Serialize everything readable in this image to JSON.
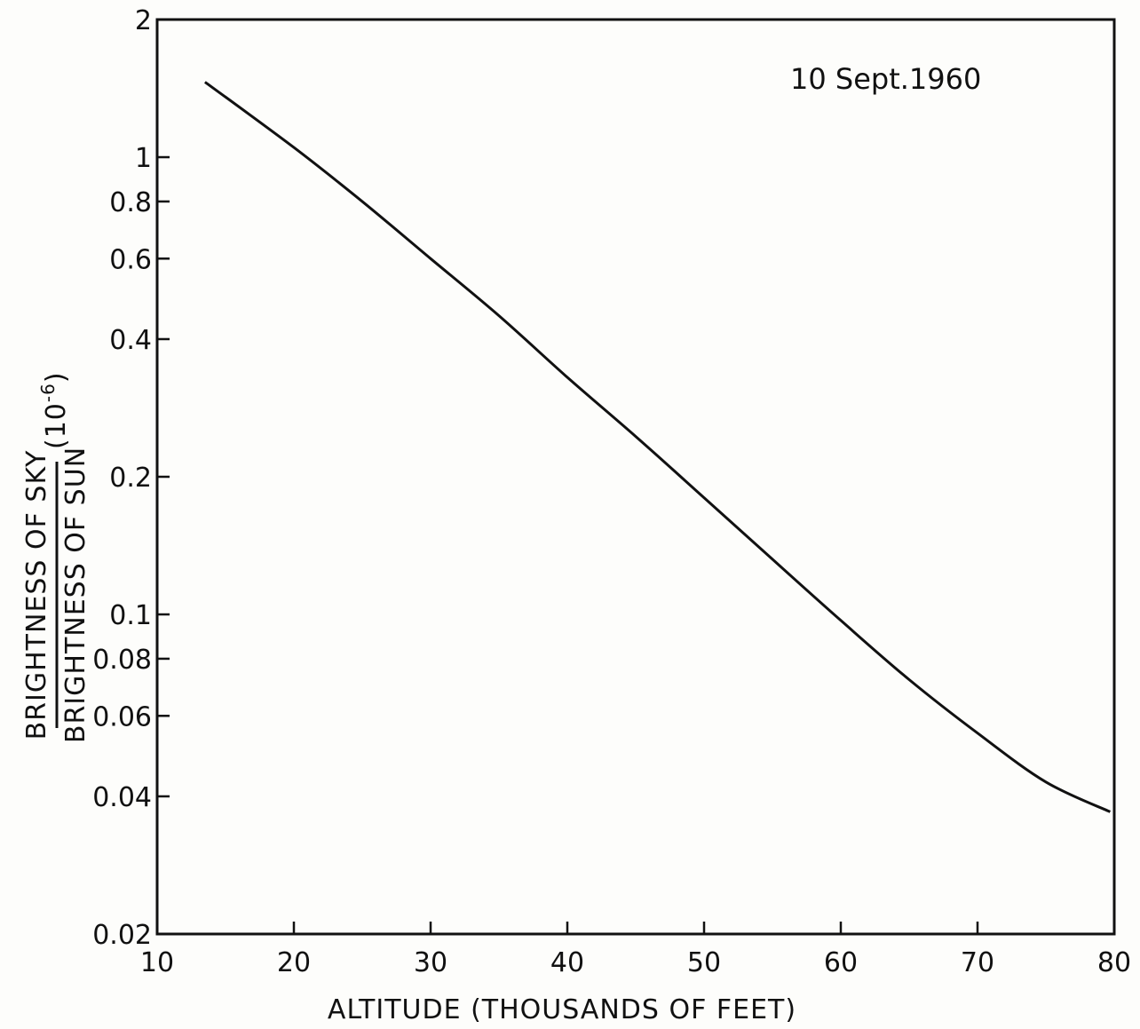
{
  "chart_data": {
    "type": "line",
    "title": "",
    "annotation": "10 Sept.1960",
    "xlabel": "ALTITUDE (THOUSANDS OF FEET)",
    "ylabel": {
      "numerator": "BRIGHTNESS OF SKY",
      "denominator": "BRIGHTNESS OF SUN",
      "unit": "(10",
      "unit_exponent": "-6",
      "unit_close": ")"
    },
    "xlim": [
      10,
      80
    ],
    "ylim": [
      0.02,
      2
    ],
    "y_scale": "log",
    "grid": false,
    "x_ticks": [
      "10",
      "20",
      "30",
      "40",
      "50",
      "60",
      "70",
      "80"
    ],
    "y_ticks": [
      {
        "label": "2",
        "value": 2
      },
      {
        "label": "1",
        "value": 1
      },
      {
        "label": "0.8",
        "value": 0.8
      },
      {
        "label": "0.6",
        "value": 0.6
      },
      {
        "label": "0.4",
        "value": 0.4
      },
      {
        "label": "0.2",
        "value": 0.2
      },
      {
        "label": "0.1",
        "value": 0.1
      },
      {
        "label": "0.08",
        "value": 0.08
      },
      {
        "label": "0.06",
        "value": 0.06
      },
      {
        "label": "0.04",
        "value": 0.04
      },
      {
        "label": "0.02",
        "value": 0.02
      }
    ],
    "series": [
      {
        "color": "#111111",
        "x": [
          13.5,
          20,
          25,
          30,
          35,
          40,
          45,
          50,
          55,
          60,
          65,
          70,
          75,
          79.7
        ],
        "y": [
          1.46,
          1.05,
          0.8,
          0.6,
          0.45,
          0.33,
          0.245,
          0.18,
          0.132,
          0.097,
          0.072,
          0.055,
          0.043,
          0.037
        ]
      }
    ]
  }
}
